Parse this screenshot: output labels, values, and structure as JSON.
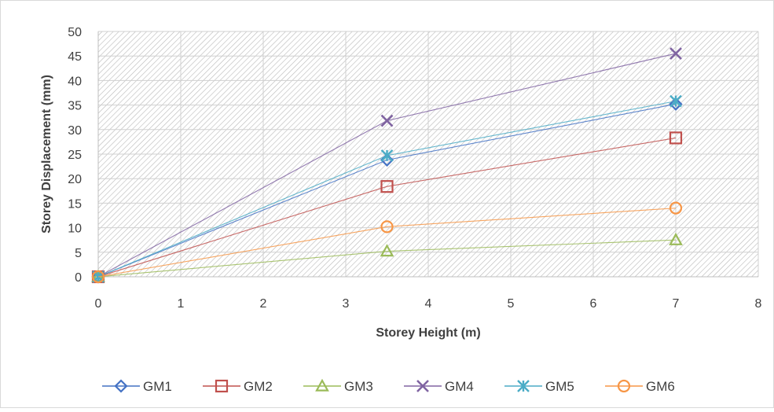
{
  "chart_data": {
    "type": "scatter",
    "title": "",
    "xlabel": "Storey Height (m)",
    "ylabel": "Storey Displacement (mm)",
    "xlim": [
      0,
      8
    ],
    "ylim": [
      0,
      50
    ],
    "xticks": [
      "0",
      "1",
      "2",
      "3",
      "4",
      "5",
      "6",
      "7",
      "8"
    ],
    "yticks": [
      "0",
      "5",
      "10",
      "15",
      "20",
      "25",
      "30",
      "35",
      "40",
      "45",
      "50"
    ],
    "grid": true,
    "legend_position": "bottom",
    "series": [
      {
        "name": "GM1",
        "marker": "diamond",
        "color": "#4472C4",
        "x": [
          0,
          3.5,
          7
        ],
        "y": [
          0,
          23.8,
          35.2
        ]
      },
      {
        "name": "GM2",
        "marker": "square",
        "color": "#C0504D",
        "x": [
          0,
          3.5,
          7
        ],
        "y": [
          0,
          18.4,
          28.3
        ]
      },
      {
        "name": "GM3",
        "marker": "triangle",
        "color": "#9BBB59",
        "x": [
          0,
          3.5,
          7
        ],
        "y": [
          0,
          5.2,
          7.5
        ]
      },
      {
        "name": "GM4",
        "marker": "x",
        "color": "#8064A2",
        "x": [
          0,
          3.5,
          7
        ],
        "y": [
          0,
          31.8,
          45.5
        ]
      },
      {
        "name": "GM5",
        "marker": "star",
        "color": "#4BACC6",
        "x": [
          0,
          3.5,
          7
        ],
        "y": [
          0,
          24.7,
          35.8
        ]
      },
      {
        "name": "GM6",
        "marker": "circle",
        "color": "#F79646",
        "x": [
          0,
          3.5,
          7
        ],
        "y": [
          0,
          10.2,
          14.0
        ]
      }
    ]
  }
}
